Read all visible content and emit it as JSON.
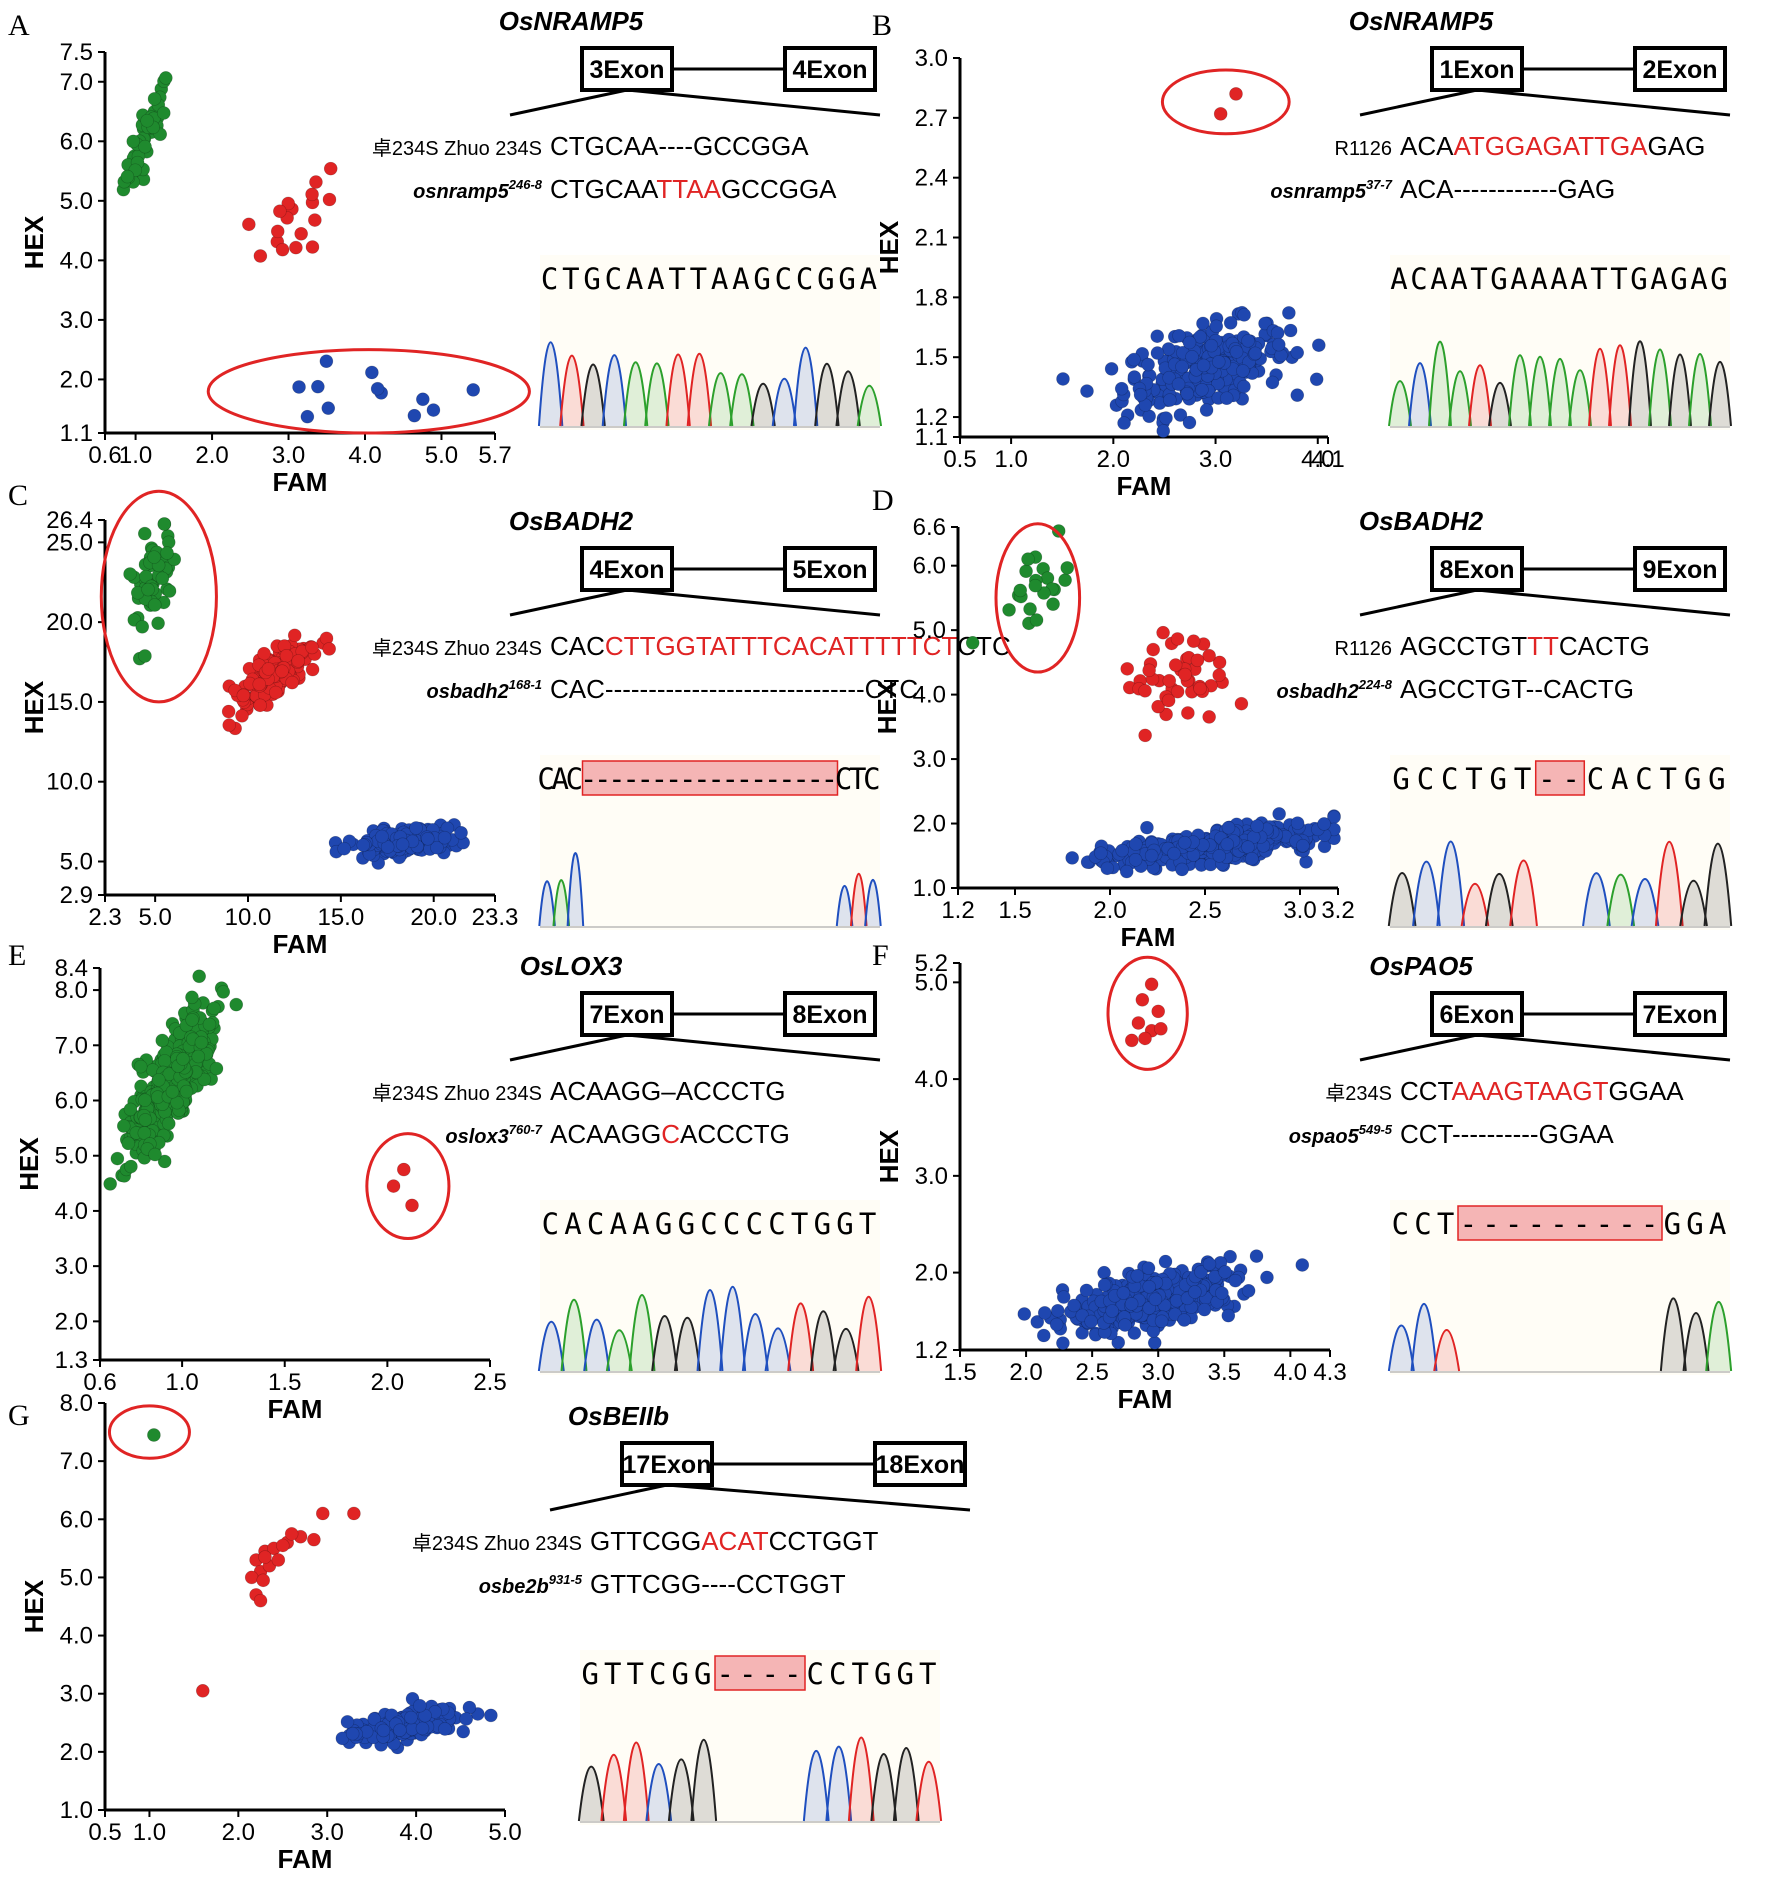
{
  "colors": {
    "wild_cluster": "#1f8a2e",
    "het_cluster": "#e02424",
    "mut_cluster": "#1f47b0",
    "highlight_text": "#e02424",
    "highlight_box": "#f5b5b5",
    "chrom_A": "#2ca02c",
    "chrom_C": "#1f4fbf",
    "chrom_G": "#222222",
    "chrom_T": "#e02424",
    "chrom_bg": "#fffdf6"
  },
  "panels": [
    {
      "letter": "A",
      "gene": "OsNRAMP5",
      "exon_left": "3Exon",
      "exon_right": "4Exon",
      "wt_label": "卓234S Zhuo 234S",
      "wt_seq": [
        {
          "t": "CTGCAA"
        },
        {
          "t": "----"
        },
        {
          "t": "GCCGGA"
        }
      ],
      "mut_label": "osnramp5",
      "mut_sup": "246-8",
      "mut_seq": [
        {
          "t": "CTGCAA"
        },
        {
          "t": "TTAA",
          "h": true
        },
        {
          "t": "GCCGGA"
        }
      ],
      "chrom_text": "CTGCAATTAAGCCGGA",
      "chart_data": {
        "type": "scatter",
        "xlabel": "FAM",
        "ylabel": "HEX",
        "xlim": [
          0.6,
          5.7
        ],
        "ylim": [
          1.1,
          7.5
        ],
        "xticks": [
          "0.6",
          "1.0",
          "2.0",
          "3.0",
          "4.0",
          "5.0",
          "5.7"
        ],
        "yticks": [
          "1.1",
          "2.0",
          "3.0",
          "4.0",
          "5.0",
          "6.0",
          "7.0",
          "7.5"
        ],
        "series": [
          {
            "color": "wild",
            "center": [
              1.15,
              6.1
            ],
            "spread": [
              0.15,
              0.45
            ],
            "count": 45,
            "corr": 0.85
          },
          {
            "color": "het",
            "center": [
              3.1,
              4.7
            ],
            "spread": [
              0.3,
              0.4
            ],
            "count": 18,
            "corr": 0.6
          },
          {
            "color": "mut",
            "center": [
              4.0,
              1.7
            ],
            "spread": [
              0.8,
              0.25
            ],
            "count": 12,
            "corr": 0.1
          }
        ],
        "circle": {
          "center": [
            4.05,
            1.8
          ],
          "r": [
            2.1,
            0.7
          ]
        }
      }
    },
    {
      "letter": "B",
      "gene": "OsNRAMP5",
      "exon_left": "1Exon",
      "exon_right": "2Exon",
      "wt_label": "R1126",
      "wt_seq": [
        {
          "t": "ACA"
        },
        {
          "t": "ATGGAGATTGA",
          "h": true
        },
        {
          "t": "GAG"
        }
      ],
      "mut_label": "osnramp5",
      "mut_sup": "37-7",
      "mut_seq": [
        {
          "t": "ACA"
        },
        {
          "t": "------------"
        },
        {
          "t": "GAG"
        }
      ],
      "chrom_text": "ACAATGAAAATTGAGAG",
      "chart_data": {
        "type": "scatter",
        "xlabel": "FAM",
        "ylabel": "HEX",
        "xlim": [
          0.5,
          4.1
        ],
        "ylim": [
          1.1,
          3.0
        ],
        "xticks": [
          "0.5",
          "1.0",
          "2.0",
          "3.0",
          "4.0",
          "4.1"
        ],
        "yticks": [
          "1.1",
          "1.2",
          "1.5",
          "1.8",
          "2.1",
          "2.4",
          "2.7",
          "3.0"
        ],
        "series": [
          {
            "color": "het",
            "points": [
              [
                3.2,
                2.82
              ],
              [
                3.05,
                2.72
              ]
            ]
          },
          {
            "color": "mut",
            "center": [
              2.9,
              1.45
            ],
            "spread": [
              0.4,
              0.11
            ],
            "count": 280,
            "corr": 0.45
          }
        ],
        "circle": {
          "center": [
            3.1,
            2.78
          ],
          "r": [
            0.62,
            0.16
          ]
        }
      }
    },
    {
      "letter": "C",
      "gene": "OsBADH2",
      "exon_left": "4Exon",
      "exon_right": "5Exon",
      "wt_label": "卓234S Zhuo 234S",
      "wt_seq": [
        {
          "t": "CAC"
        },
        {
          "t": "CTTGGTATTTCACATTTTTCT",
          "h": true
        },
        {
          "t": "CTC"
        }
      ],
      "mut_label": "osbadh2",
      "mut_sup": "168-1",
      "mut_seq": [
        {
          "t": "CAC"
        },
        {
          "t": "------------------------------"
        },
        {
          "t": "CTC"
        }
      ],
      "chrom_text": "CAC------------------CTC",
      "chart_data": {
        "type": "scatter",
        "xlabel": "FAM",
        "ylabel": "HEX",
        "xlim": [
          2.3,
          23.3
        ],
        "ylim": [
          2.9,
          26.4
        ],
        "xticks": [
          "2.3",
          "5.0",
          "10.0",
          "15.0",
          "20.0",
          "23.3"
        ],
        "yticks": [
          "2.9",
          "5.0",
          "10.0",
          "15.0",
          "20.0",
          "25.0",
          "26.4"
        ],
        "series": [
          {
            "color": "wild",
            "center": [
              4.8,
              22.5
            ],
            "spread": [
              0.6,
              1.6
            ],
            "count": 55,
            "corr": 0.5
          },
          {
            "color": "het",
            "center": [
              11.3,
              16.6
            ],
            "spread": [
              1.1,
              1.1
            ],
            "count": 180,
            "corr": 0.8
          },
          {
            "color": "mut",
            "center": [
              18.6,
              6.3
            ],
            "spread": [
              1.4,
              0.4
            ],
            "count": 260,
            "corr": 0.5
          }
        ],
        "circle": {
          "center": [
            5.2,
            21.6
          ],
          "r": [
            3.1,
            6.6
          ]
        }
      }
    },
    {
      "letter": "D",
      "gene": "OsBADH2",
      "exon_left": "8Exon",
      "exon_right": "9Exon",
      "wt_label": "R1126",
      "wt_seq": [
        {
          "t": "AGCCTGT"
        },
        {
          "t": "TT",
          "h": true
        },
        {
          "t": "CACTG"
        }
      ],
      "mut_label": "osbadh2",
      "mut_sup": "224-8",
      "mut_seq": [
        {
          "t": "AGCCTGT"
        },
        {
          "t": "--"
        },
        {
          "t": "CACTG"
        }
      ],
      "chrom_text": "GCCTGT--CACTGG",
      "chart_data": {
        "type": "scatter",
        "xlabel": "FAM",
        "ylabel": "HEX",
        "xlim": [
          1.2,
          3.2
        ],
        "ylim": [
          1.0,
          6.6
        ],
        "xticks": [
          "1.2",
          "1.5",
          "2.0",
          "2.5",
          "3.0",
          "3.2"
        ],
        "yticks": [
          "1.0",
          "2.0",
          "3.0",
          "4.0",
          "5.0",
          "6.0",
          "6.6"
        ],
        "series": [
          {
            "color": "wild",
            "center": [
              1.6,
              5.65
            ],
            "spread": [
              0.1,
              0.35
            ],
            "count": 22,
            "corr": 0.2
          },
          {
            "color": "het",
            "center": [
              2.35,
              4.3
            ],
            "spread": [
              0.15,
              0.35
            ],
            "count": 45,
            "corr": 0.4
          },
          {
            "color": "mut",
            "center": [
              2.55,
              1.65
            ],
            "spread": [
              0.28,
              0.15
            ],
            "count": 400,
            "corr": 0.6
          }
        ],
        "circle": {
          "center": [
            1.62,
            5.5
          ],
          "r": [
            0.22,
            1.15
          ]
        }
      }
    },
    {
      "letter": "E",
      "gene": "OsLOX3",
      "exon_left": "7Exon",
      "exon_right": "8Exon",
      "wt_label": "卓234S Zhuo 234S",
      "wt_seq": [
        {
          "t": "ACAAGG"
        },
        {
          "t": "–"
        },
        {
          "t": "ACCCTG"
        }
      ],
      "mut_label": "oslox3",
      "mut_sup": "760-7",
      "mut_seq": [
        {
          "t": "ACAAGG"
        },
        {
          "t": "C",
          "h": true
        },
        {
          "t": "ACCCTG"
        }
      ],
      "chrom_text": "CACAAGGCCCCTGGT",
      "chart_data": {
        "type": "scatter",
        "xlabel": "FAM",
        "ylabel": "HEX",
        "xlim": [
          0.6,
          2.5
        ],
        "ylim": [
          1.3,
          8.4
        ],
        "xticks": [
          "0.6",
          "1.0",
          "1.5",
          "2.0",
          "2.5"
        ],
        "yticks": [
          "1.3",
          "2.0",
          "3.0",
          "4.0",
          "5.0",
          "6.0",
          "7.0",
          "8.0",
          "8.4"
        ],
        "series": [
          {
            "color": "wild",
            "center": [
              0.95,
              6.3
            ],
            "spread": [
              0.1,
              0.6
            ],
            "count": 420,
            "corr": 0.75
          },
          {
            "color": "het",
            "points": [
              [
                2.08,
                4.75
              ],
              [
                2.03,
                4.45
              ],
              [
                2.12,
                4.1
              ]
            ]
          }
        ],
        "circle": {
          "center": [
            2.1,
            4.45
          ],
          "r": [
            0.2,
            0.95
          ]
        }
      }
    },
    {
      "letter": "F",
      "gene": "OsPAO5",
      "exon_left": "6Exon",
      "exon_right": "7Exon",
      "wt_label": "卓234S",
      "wt_seq": [
        {
          "t": "CCT"
        },
        {
          "t": "AAAGTAAGT",
          "h": true
        },
        {
          "t": "GGAA"
        }
      ],
      "mut_label": "ospao5",
      "mut_sup": "549-5",
      "mut_seq": [
        {
          "t": "CCT"
        },
        {
          "t": "----------"
        },
        {
          "t": "GGAA"
        }
      ],
      "chrom_text": "CCT---------GGA",
      "chart_data": {
        "type": "scatter",
        "xlabel": "FAM",
        "ylabel": "HEX",
        "xlim": [
          1.5,
          4.3
        ],
        "ylim": [
          1.2,
          5.2
        ],
        "xticks": [
          "1.5",
          "2.0",
          "2.5",
          "3.0",
          "3.5",
          "4.0",
          "4.3"
        ],
        "yticks": [
          "1.2",
          "2.0",
          "3.0",
          "4.0",
          "5.0",
          "5.2"
        ],
        "series": [
          {
            "color": "het",
            "points": [
              [
                2.95,
                4.98
              ],
              [
                2.88,
                4.82
              ],
              [
                3.0,
                4.7
              ],
              [
                2.85,
                4.58
              ],
              [
                2.95,
                4.5
              ],
              [
                3.02,
                4.52
              ],
              [
                2.8,
                4.4
              ],
              [
                2.9,
                4.42
              ]
            ]
          },
          {
            "color": "mut",
            "center": [
              2.95,
              1.72
            ],
            "spread": [
              0.32,
              0.16
            ],
            "count": 380,
            "corr": 0.55
          }
        ],
        "circle": {
          "center": [
            2.92,
            4.68
          ],
          "r": [
            0.3,
            0.58
          ]
        }
      }
    },
    {
      "letter": "G",
      "gene": "OsBEIIb",
      "exon_left": "17Exon",
      "exon_right": "18Exon",
      "wt_label": "卓234S Zhuo 234S",
      "wt_seq": [
        {
          "t": "GTTCGG"
        },
        {
          "t": "ACAT",
          "h": true
        },
        {
          "t": "CCTGGT"
        }
      ],
      "mut_label": "osbe2b",
      "mut_sup": "931-5",
      "mut_seq": [
        {
          "t": "GTTCGG"
        },
        {
          "t": "----"
        },
        {
          "t": "CCTGGT"
        }
      ],
      "chrom_text": "GTTCGG----CCTGGT",
      "chart_data": {
        "type": "scatter",
        "xlabel": "FAM",
        "ylabel": "HEX",
        "xlim": [
          0.5,
          5.0
        ],
        "ylim": [
          1.0,
          8.0
        ],
        "xticks": [
          "0.5",
          "1.0",
          "2.0",
          "3.0",
          "4.0",
          "5.0"
        ],
        "yticks": [
          "1.0",
          "2.0",
          "3.0",
          "4.0",
          "5.0",
          "6.0",
          "7.0",
          "8.0"
        ],
        "series": [
          {
            "color": "wild",
            "points": [
              [
                1.05,
                7.45
              ]
            ]
          },
          {
            "color": "het",
            "points": [
              [
                2.2,
                5.3
              ],
              [
                2.25,
                5.1
              ],
              [
                2.3,
                5.45
              ],
              [
                2.15,
                5.0
              ],
              [
                2.28,
                4.95
              ],
              [
                2.35,
                5.2
              ],
              [
                2.2,
                4.7
              ],
              [
                2.25,
                4.6
              ],
              [
                2.4,
                5.5
              ],
              [
                2.55,
                5.6
              ],
              [
                2.45,
                5.3
              ],
              [
                2.5,
                5.55
              ],
              [
                2.7,
                5.7
              ],
              [
                2.85,
                5.65
              ],
              [
                2.95,
                6.1
              ],
              [
                3.3,
                6.1
              ],
              [
                2.6,
                5.75
              ],
              [
                2.3,
                5.35
              ],
              [
                1.6,
                3.05
              ]
            ]
          },
          {
            "color": "mut",
            "center": [
              3.85,
              2.45
            ],
            "spread": [
              0.3,
              0.15
            ],
            "count": 200,
            "corr": 0.6
          }
        ],
        "circle": {
          "center": [
            1.0,
            7.5
          ],
          "r": [
            0.45,
            0.45
          ]
        }
      }
    }
  ]
}
